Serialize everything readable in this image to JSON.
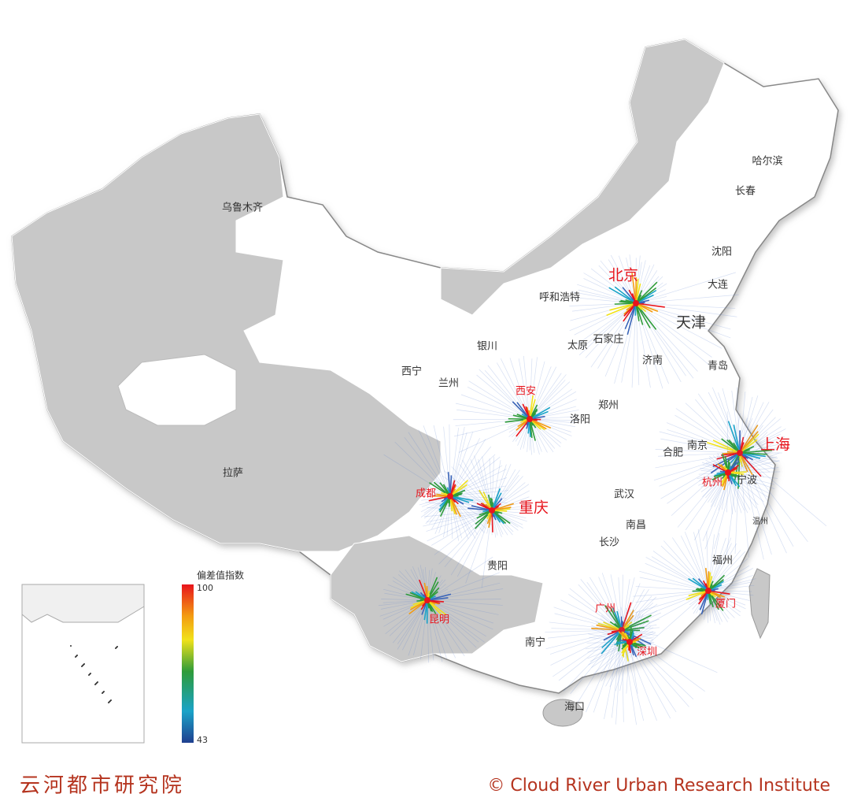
{
  "map": {
    "hub_cities": [
      "北京",
      "上海",
      "重庆",
      "西安",
      "成都",
      "杭州",
      "昆明",
      "广州",
      "深圳",
      "厦门"
    ],
    "cities": [
      "天津",
      "乌鲁木齐",
      "哈尔滨",
      "长春",
      "沈阳",
      "大连",
      "呼和浩特",
      "石家庄",
      "太原",
      "银川",
      "济南",
      "青岛",
      "西宁",
      "兰州",
      "郑州",
      "洛阳",
      "南京",
      "合肥",
      "宁波",
      "温州",
      "武汉",
      "拉萨",
      "南昌",
      "长沙",
      "福州",
      "贵阳",
      "南宁",
      "海口"
    ],
    "legend": {
      "title": "偏差值指数",
      "max": 100,
      "min": 43
    },
    "footer": {
      "left": "云河都市研究院",
      "right": "© Cloud River Urban Research Institute"
    }
  }
}
